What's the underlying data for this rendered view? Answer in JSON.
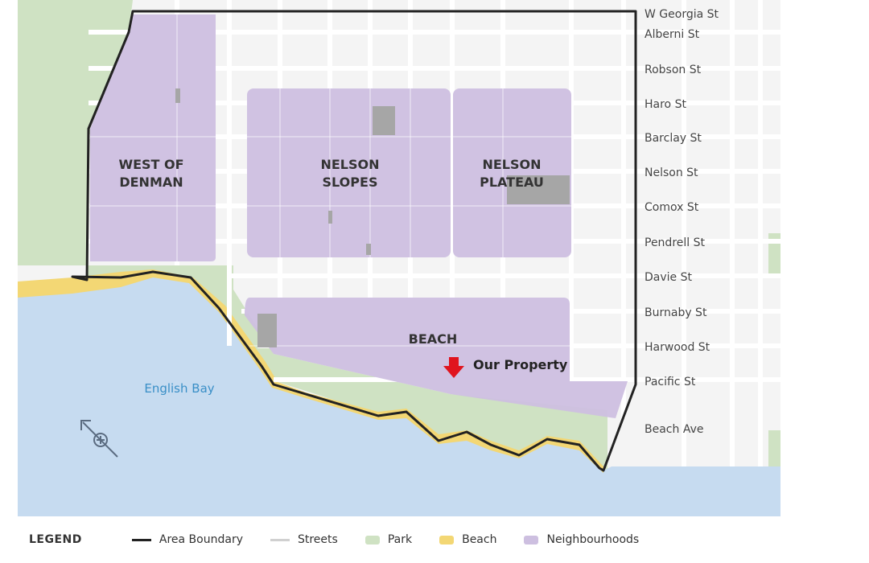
{
  "streets": [
    "W Georgia St",
    "Alberni St",
    "Robson St",
    "Haro St",
    "Barclay St",
    "Nelson St",
    "Comox St",
    "Pendrell St",
    "Davie St",
    "Burnaby St",
    "Harwood St",
    "Pacific St",
    "Beach Ave"
  ],
  "neighbourhoods": {
    "west_of_denman_1": "WEST OF",
    "west_of_denman_2": "DENMAN",
    "nelson_slopes_1": "NELSON",
    "nelson_slopes_2": "SLOPES",
    "nelson_plateau_1": "NELSON",
    "nelson_plateau_2": "PLATEAU",
    "beach": "BEACH"
  },
  "water_label": "English Bay",
  "property_label": "Our Property",
  "legend": {
    "title": "LEGEND",
    "area_boundary": "Area Boundary",
    "streets": "Streets",
    "park": "Park",
    "beach": "Beach",
    "neighbourhoods": "Neighbourhoods"
  },
  "colors": {
    "water": "#c6dbf0",
    "park": "#cfe2c3",
    "beach": "#f3d774",
    "neighbourhood": "#cdbfe0",
    "boundary": "#222222",
    "property_arrow": "#e0141e"
  },
  "icons": [
    "compass-icon",
    "property-arrow-icon"
  ]
}
